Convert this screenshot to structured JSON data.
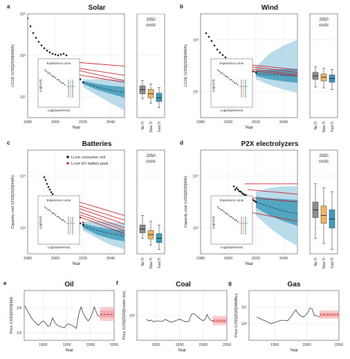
{
  "colors": {
    "obs": "#111111",
    "red": "#c8202a",
    "band_light": "#aed6e6",
    "band_dark": "#3f9cba",
    "median": "#334455",
    "box_no": "#8f8f8f",
    "box_slow": "#f0b565",
    "box_fast": "#3d9bbf",
    "grid": "#e6e6e6",
    "fossil_band": "#f2a7a9"
  },
  "common": {
    "year_label": "Year",
    "costs_2050_line1": "2050",
    "costs_2050_line2": "costs",
    "box_labels": [
      "No Tr.",
      "Slow Tr.",
      "Fast Tr."
    ],
    "inset_title": "Experience curve",
    "inset_xlabel": "Log(experience)",
    "inset_ylabel": "Log(cost)"
  },
  "legend": {
    "items": [
      {
        "label": "Li-ion consumer cell",
        "color": "#111111"
      },
      {
        "label": "Li-ion EV battery pack",
        "color": "#c8202a"
      }
    ]
  },
  "chart_data": [
    {
      "panel": "a",
      "title": "Solar",
      "type": "line",
      "ylabel": "LCOE (USD[2020]/MWh)",
      "xlim": [
        1980,
        2050
      ],
      "ylog": true,
      "ylim": [
        1,
        100000
      ],
      "xticks": [
        1980,
        2000,
        2020,
        2040
      ],
      "yticks": [
        {
          "v": 10,
          "label": "10¹"
        },
        {
          "v": 1000,
          "label": "10³"
        },
        {
          "v": 100000,
          "label": "10⁵"
        }
      ],
      "observed": {
        "x": [
          1980,
          1982,
          1984,
          1986,
          1988,
          1990,
          1992,
          1994,
          1996,
          1998,
          2000,
          2002,
          2004,
          2006,
          2008,
          2010,
          2012,
          2014,
          2016,
          2018,
          2020
        ],
        "y": [
          60000,
          25000,
          12000,
          7000,
          4500,
          3000,
          2200,
          1700,
          1400,
          1200,
          1100,
          1000,
          1100,
          1200,
          1000,
          500,
          250,
          150,
          100,
          70,
          50
        ]
      },
      "red_projections": [
        {
          "x": [
            2009,
            2050
          ],
          "y": [
            500,
            300
          ]
        },
        {
          "x": [
            2010,
            2050
          ],
          "y": [
            280,
            110
          ]
        },
        {
          "x": [
            2012,
            2050
          ],
          "y": [
            220,
            60
          ]
        },
        {
          "x": [
            2015,
            2050
          ],
          "y": [
            120,
            50
          ]
        }
      ],
      "forecast": {
        "x": [
          2020,
          2030,
          2040,
          2050
        ],
        "outer_lo": [
          30,
          12,
          5,
          2.2
        ],
        "outer_hi": [
          70,
          70,
          70,
          70
        ],
        "inner_lo": [
          42,
          22,
          14,
          9
        ],
        "inner_hi": [
          58,
          42,
          34,
          30
        ],
        "median": [
          50,
          30,
          21,
          16
        ]
      },
      "boxes_2050": [
        {
          "label": "No Tr.",
          "whislo": 8,
          "q1": 14,
          "med": 22,
          "q3": 34,
          "whishi": 60
        },
        {
          "label": "Slow Tr.",
          "whislo": 5,
          "q1": 9,
          "med": 14,
          "q3": 23,
          "whishi": 42
        },
        {
          "label": "Fast Tr.",
          "whislo": 3,
          "q1": 6,
          "med": 9,
          "q3": 15,
          "whishi": 28
        }
      ]
    },
    {
      "panel": "b",
      "title": "Wind",
      "type": "line",
      "ylabel": "LCOE (USD[2020]/MWh)",
      "xlim": [
        1980,
        2050
      ],
      "ylog": true,
      "ylim": [
        1,
        10000
      ],
      "xticks": [
        1980,
        2000,
        2020,
        2040
      ],
      "yticks": [
        {
          "v": 10,
          "label": "10¹"
        },
        {
          "v": 1000,
          "label": "10³"
        }
      ],
      "observed": {
        "x": [
          1984,
          1986,
          1988,
          1990,
          1992,
          1994,
          1996,
          1998,
          2000,
          2002,
          2004,
          2006,
          2008,
          2010,
          2012,
          2014,
          2016,
          2018,
          2020
        ],
        "y": [
          1800,
          1300,
          900,
          600,
          420,
          320,
          260,
          210,
          170,
          150,
          130,
          120,
          110,
          100,
          90,
          80,
          70,
          60,
          55
        ]
      },
      "red_projections": [
        {
          "x": [
            2008,
            2050
          ],
          "y": [
            120,
            70
          ]
        },
        {
          "x": [
            2010,
            2050
          ],
          "y": [
            100,
            55
          ]
        },
        {
          "x": [
            2013,
            2050
          ],
          "y": [
            80,
            45
          ]
        },
        {
          "x": [
            2016,
            2050
          ],
          "y": [
            65,
            40
          ]
        }
      ],
      "forecast": {
        "x": [
          2020,
          2030,
          2040,
          2050
        ],
        "outer_lo": [
          30,
          18,
          12,
          9
        ],
        "outer_hi": [
          90,
          300,
          600,
          1000
        ],
        "inner_lo": [
          40,
          30,
          25,
          22
        ],
        "inner_hi": [
          65,
          70,
          75,
          75
        ],
        "median": [
          50,
          45,
          42,
          40
        ]
      },
      "boxes_2050": [
        {
          "label": "No Tr.",
          "whislo": 15,
          "q1": 30,
          "med": 40,
          "q3": 55,
          "whishi": 90
        },
        {
          "label": "Slow Tr.",
          "whislo": 14,
          "q1": 26,
          "med": 36,
          "q3": 48,
          "whishi": 80
        },
        {
          "label": "Fast Tr.",
          "whislo": 12,
          "q1": 23,
          "med": 32,
          "q3": 44,
          "whishi": 72
        }
      ]
    },
    {
      "panel": "c",
      "title": "Batteries",
      "type": "line",
      "ylabel": "Capacity cost (USD[2020]/kWh)",
      "xlim": [
        1980,
        2050
      ],
      "ylog": true,
      "ylim": [
        10,
        100000
      ],
      "xticks": [
        1980,
        2000,
        2020,
        2040
      ],
      "yticks": [
        {
          "v": 100,
          "label": "10²"
        },
        {
          "v": 10000,
          "label": "10⁴"
        }
      ],
      "observed": {
        "x": [
          1992,
          1993,
          1994,
          1995,
          1996,
          1997,
          1998,
          1999,
          2000,
          2001,
          2002,
          2003,
          2004,
          2005,
          2006,
          2007,
          2008,
          2010,
          2012,
          2014,
          2016,
          2018,
          2020
        ],
        "y": [
          9000,
          7000,
          5000,
          3800,
          3000,
          2400,
          2000,
          1600,
          1300,
          1100,
          900,
          800,
          700,
          600,
          500,
          400,
          350,
          300,
          250,
          200,
          170,
          150,
          130
        ]
      },
      "observed_ev": {
        "x": [
          2010,
          2012,
          2014,
          2016,
          2018,
          2020
        ],
        "y": [
          1000,
          700,
          500,
          350,
          250,
          160
        ]
      },
      "red_projections": [
        {
          "x": [
            2010,
            2050
          ],
          "y": [
            1300,
            300
          ]
        },
        {
          "x": [
            2011,
            2050
          ],
          "y": [
            900,
            200
          ]
        },
        {
          "x": [
            2012,
            2050
          ],
          "y": [
            700,
            140
          ]
        },
        {
          "x": [
            2013,
            2050
          ],
          "y": [
            500,
            100
          ]
        },
        {
          "x": [
            2014,
            2050
          ],
          "y": [
            380,
            80
          ]
        },
        {
          "x": [
            2015,
            2050
          ],
          "y": [
            300,
            60
          ]
        }
      ],
      "forecast": {
        "x": [
          2020,
          2030,
          2040,
          2050
        ],
        "outer_lo": [
          80,
          40,
          22,
          15
        ],
        "outer_hi": [
          180,
          180,
          170,
          150
        ],
        "inner_lo": [
          100,
          55,
          38,
          30
        ],
        "inner_hi": [
          150,
          110,
          90,
          80
        ],
        "median": [
          120,
          80,
          60,
          50
        ]
      },
      "boxes_2050": [
        {
          "label": "No Tr.",
          "whislo": 40,
          "q1": 65,
          "med": 90,
          "q3": 130,
          "whishi": 300
        },
        {
          "label": "Slow Tr.",
          "whislo": 22,
          "q1": 38,
          "med": 55,
          "q3": 80,
          "whishi": 180
        },
        {
          "label": "Fast Tr.",
          "whislo": 15,
          "q1": 27,
          "med": 40,
          "q3": 60,
          "whishi": 130
        }
      ]
    },
    {
      "panel": "d",
      "title": "P2X electrolyzers",
      "type": "line",
      "ylabel": "Capacity cost (USD[2020]/kW)",
      "xlim": [
        1980,
        2050
      ],
      "ylog": true,
      "ylim": [
        10,
        100000
      ],
      "xticks": [
        1980,
        2000,
        2020,
        2040
      ],
      "yticks": [
        {
          "v": 100,
          "label": "10²"
        },
        {
          "v": 10000,
          "label": "10⁴"
        }
      ],
      "observed": {
        "x": [
          2004,
          2005,
          2006,
          2007,
          2008,
          2009,
          2010,
          2011,
          2012,
          2013,
          2014,
          2015,
          2016,
          2017,
          2018,
          2019,
          2020
        ],
        "y": [
          4000,
          3000,
          3500,
          3000,
          2600,
          2500,
          2200,
          2000,
          1900,
          1800,
          1600,
          1500,
          1400,
          1300,
          1200,
          1100,
          1000
        ]
      },
      "red_projections": [
        {
          "x": [
            2012,
            2050
          ],
          "y": [
            5000,
            5000
          ]
        },
        {
          "x": [
            2014,
            2050
          ],
          "y": [
            3000,
            2000
          ]
        },
        {
          "x": [
            2015,
            2050
          ],
          "y": [
            1500,
            1000
          ]
        },
        {
          "x": [
            2016,
            2050
          ],
          "y": [
            400,
            180
          ]
        }
      ],
      "forecast": {
        "x": [
          2020,
          2030,
          2040,
          2050
        ],
        "outer_lo": [
          300,
          100,
          40,
          20
        ],
        "outer_hi": [
          2500,
          3500,
          4000,
          4000
        ],
        "inner_lo": [
          600,
          300,
          180,
          120
        ],
        "inner_hi": [
          1600,
          1400,
          1300,
          1200
        ],
        "median": [
          1000,
          650,
          450,
          350
        ]
      },
      "boxes_2050": [
        {
          "label": "No Tr.",
          "whislo": 40,
          "q1": 250,
          "med": 500,
          "q3": 1000,
          "whishi": 5000
        },
        {
          "label": "Slow Tr.",
          "whislo": 25,
          "q1": 150,
          "med": 300,
          "q3": 700,
          "whishi": 3500
        },
        {
          "label": "Fast Tr.",
          "whislo": 15,
          "q1": 100,
          "med": 220,
          "q3": 500,
          "whishi": 2500
        }
      ]
    },
    {
      "panel": "e",
      "title": "Oil",
      "type": "line",
      "ylabel": "Price (USD[2020]/bbl)",
      "xlim": [
        1860,
        2050
      ],
      "ylog": true,
      "ylim": [
        5,
        500
      ],
      "xticks": [
        1900,
        1950,
        2000,
        2050
      ],
      "yticks": [
        {
          "v": 10,
          "label": "10¹"
        },
        {
          "v": 100,
          "label": "10²"
        }
      ],
      "observed": {
        "x": [
          1861,
          1865,
          1870,
          1875,
          1880,
          1885,
          1890,
          1895,
          1900,
          1905,
          1910,
          1915,
          1920,
          1925,
          1930,
          1935,
          1940,
          1945,
          1950,
          1955,
          1960,
          1965,
          1970,
          1975,
          1980,
          1985,
          1990,
          1995,
          2000,
          2005,
          2008,
          2010,
          2015,
          2020
        ],
        "y": [
          120,
          90,
          60,
          40,
          30,
          25,
          20,
          25,
          30,
          25,
          18,
          20,
          40,
          25,
          20,
          18,
          17,
          16,
          22,
          22,
          20,
          18,
          15,
          55,
          110,
          60,
          40,
          30,
          40,
          70,
          110,
          90,
          50,
          45
        ]
      },
      "forecast": {
        "x": [
          2020,
          2050
        ],
        "outer_lo": [
          30,
          30
        ],
        "outer_hi": [
          110,
          110
        ],
        "inner_lo": [
          40,
          40
        ],
        "inner_hi": [
          80,
          80
        ],
        "median": [
          55,
          55
        ]
      }
    },
    {
      "panel": "f",
      "title": "Coal",
      "type": "line",
      "ylabel": "Price (USD[2020]/metric ton)",
      "xlim": [
        1860,
        2050
      ],
      "ylog": true,
      "ylim": [
        10,
        1000
      ],
      "xticks": [
        1900,
        1950,
        2000,
        2050
      ],
      "yticks": [
        {
          "v": 100,
          "label": "10²"
        }
      ],
      "observed": {
        "x": [
          1880,
          1885,
          1890,
          1895,
          1900,
          1905,
          1910,
          1915,
          1920,
          1925,
          1930,
          1935,
          1940,
          1945,
          1950,
          1955,
          1960,
          1965,
          1970,
          1975,
          1980,
          1985,
          1990,
          1995,
          2000,
          2005,
          2008,
          2010,
          2015,
          2020
        ],
        "y": [
          70,
          60,
          65,
          55,
          60,
          60,
          58,
          60,
          70,
          62,
          55,
          55,
          60,
          65,
          70,
          65,
          58,
          55,
          60,
          110,
          120,
          100,
          80,
          70,
          60,
          75,
          110,
          90,
          65,
          60
        ]
      },
      "forecast": {
        "x": [
          2020,
          2050
        ],
        "outer_lo": [
          40,
          40
        ],
        "outer_hi": [
          95,
          95
        ],
        "inner_lo": [
          50,
          50
        ],
        "inner_hi": [
          75,
          75
        ],
        "median": [
          60,
          60
        ]
      }
    },
    {
      "panel": "g",
      "title": "Gas",
      "type": "line",
      "ylabel": "Price (USD[2020]/MMBtu)",
      "xlim": [
        1910,
        2050
      ],
      "ylog": true,
      "ylim": [
        0.1,
        100
      ],
      "xticks": [
        1950,
        2000,
        2050
      ],
      "yticks": [
        {
          "v": 1,
          "label": "10⁰"
        },
        {
          "v": 10,
          "label": "10¹"
        }
      ],
      "observed": {
        "x": [
          1922,
          1925,
          1930,
          1935,
          1940,
          1945,
          1950,
          1955,
          1960,
          1965,
          1970,
          1975,
          1980,
          1983,
          1985,
          1990,
          1995,
          2000,
          2003,
          2005,
          2008,
          2010,
          2012,
          2015,
          2020
        ],
        "y": [
          2.5,
          2.2,
          1.8,
          1.5,
          1.2,
          1.0,
          1.2,
          1.4,
          1.6,
          1.6,
          1.5,
          2.5,
          5,
          7,
          5,
          3,
          2.5,
          4,
          6,
          9,
          8,
          5,
          3,
          3,
          2.5
        ]
      },
      "forecast": {
        "x": [
          2020,
          2050
        ],
        "outer_lo": [
          2,
          2
        ],
        "outer_hi": [
          6.5,
          6.5
        ],
        "inner_lo": [
          2.6,
          2.6
        ],
        "inner_hi": [
          4.5,
          4.5
        ],
        "median": [
          3.5,
          3.5
        ]
      }
    }
  ]
}
